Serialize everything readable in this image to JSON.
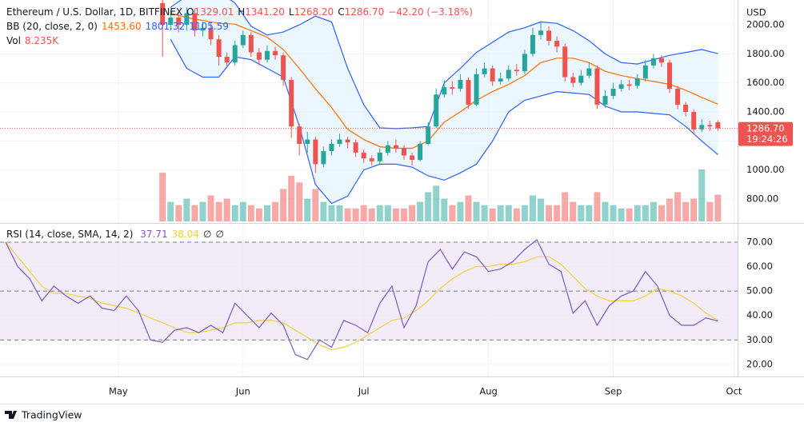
{
  "chart_data": [
    {
      "type": "candlestick",
      "title": "Ethereum / U.S. Dollar, 1D, BITFINEX",
      "ohlc_legend": [
        {
          "key": "O",
          "value": "1329.01"
        },
        {
          "key": "H",
          "value": "1341.20"
        },
        {
          "key": "L",
          "value": "1268.20"
        },
        {
          "key": "C",
          "value": "1286.70"
        }
      ],
      "change": "−42.20 (−3.18%)",
      "indicator_legends": [
        {
          "label": "BB (20, close, 2, 0)",
          "values": [
            "1453.60",
            "1801.32",
            "1105.59"
          ]
        },
        {
          "label": "Vol",
          "values": [
            "8.235K"
          ]
        }
      ],
      "currency": "USD",
      "price_label": "1286.70",
      "countdown": "19:24:26",
      "x": [
        132,
        134,
        136,
        138,
        140,
        142,
        144,
        146,
        148,
        150,
        152,
        154,
        156,
        158,
        160,
        162,
        164,
        166,
        168,
        170,
        172,
        174,
        176,
        178,
        180,
        182,
        184,
        186,
        188,
        190,
        192,
        194,
        196,
        198,
        200,
        202,
        204,
        206,
        208,
        210,
        212,
        214,
        216,
        218,
        220,
        222,
        224,
        226,
        228,
        230,
        232,
        234,
        236,
        238,
        240,
        242,
        244,
        246,
        248,
        250,
        252,
        254,
        256,
        258,
        260,
        262,
        264,
        266,
        268,
        270
      ],
      "open": [
        2150,
        2000,
        2050,
        2000,
        2080,
        1960,
        1980,
        1900,
        1780,
        1740,
        1860,
        1930,
        1810,
        1760,
        1820,
        1790,
        1620,
        1300,
        1180,
        1210,
        1040,
        1130,
        1180,
        1210,
        1190,
        1120,
        1080,
        1060,
        1120,
        1170,
        1150,
        1100,
        1070,
        1180,
        1300,
        1520,
        1570,
        1560,
        1620,
        1450,
        1660,
        1700,
        1610,
        1630,
        1690,
        1680,
        1800,
        1930,
        1960,
        1890,
        1850,
        1640,
        1600,
        1650,
        1700,
        1450,
        1510,
        1560,
        1590,
        1580,
        1630,
        1720,
        1770,
        1740,
        1560,
        1450,
        1400,
        1280,
        1310,
        1329.01
      ],
      "high": [
        2200,
        2100,
        2090,
        2120,
        2110,
        2020,
        2010,
        1930,
        1810,
        1890,
        1960,
        1950,
        1840,
        1860,
        1850,
        1810,
        1640,
        1320,
        1260,
        1230,
        1160,
        1210,
        1250,
        1230,
        1210,
        1140,
        1100,
        1150,
        1200,
        1210,
        1170,
        1120,
        1200,
        1330,
        1560,
        1620,
        1610,
        1660,
        1640,
        1700,
        1740,
        1720,
        1670,
        1720,
        1730,
        1830,
        1980,
        2020,
        1990,
        1920,
        1870,
        1670,
        1690,
        1740,
        1720,
        1550,
        1600,
        1620,
        1620,
        1660,
        1760,
        1800,
        1790,
        1760,
        1580,
        1470,
        1420,
        1350,
        1340,
        1341.2
      ],
      "low": [
        1780,
        1960,
        1950,
        1960,
        1920,
        1920,
        1860,
        1720,
        1700,
        1720,
        1840,
        1780,
        1720,
        1740,
        1760,
        1580,
        1220,
        1100,
        1120,
        980,
        1020,
        1100,
        1160,
        1150,
        1090,
        1050,
        1030,
        1040,
        1100,
        1120,
        1070,
        1030,
        1060,
        1170,
        1290,
        1500,
        1520,
        1540,
        1420,
        1440,
        1640,
        1580,
        1590,
        1610,
        1650,
        1660,
        1780,
        1900,
        1860,
        1810,
        1610,
        1570,
        1580,
        1630,
        1420,
        1430,
        1490,
        1540,
        1550,
        1560,
        1610,
        1700,
        1710,
        1530,
        1420,
        1370,
        1250,
        1260,
        1270,
        1268.2
      ],
      "close": [
        2000,
        2050,
        2000,
        2080,
        1960,
        1980,
        1900,
        1780,
        1740,
        1860,
        1930,
        1810,
        1760,
        1820,
        1790,
        1620,
        1300,
        1180,
        1210,
        1040,
        1130,
        1180,
        1210,
        1190,
        1120,
        1080,
        1060,
        1120,
        1170,
        1150,
        1100,
        1070,
        1180,
        1300,
        1520,
        1570,
        1560,
        1620,
        1450,
        1660,
        1700,
        1610,
        1630,
        1690,
        1680,
        1800,
        1930,
        1960,
        1890,
        1850,
        1640,
        1600,
        1650,
        1700,
        1450,
        1510,
        1560,
        1590,
        1580,
        1630,
        1720,
        1770,
        1740,
        1560,
        1450,
        1400,
        1280,
        1310,
        1300,
        1286.7
      ],
      "volume": [
        15,
        6,
        5,
        7,
        5,
        6,
        8,
        6,
        7,
        5,
        6,
        5,
        4,
        5,
        6,
        10,
        14,
        12,
        7,
        10,
        6,
        5,
        5,
        4,
        4,
        5,
        4,
        5,
        5,
        4,
        4,
        5,
        6,
        9,
        11,
        7,
        5,
        6,
        8,
        6,
        5,
        4,
        5,
        5,
        4,
        5,
        8,
        7,
        5,
        5,
        9,
        6,
        5,
        5,
        9,
        6,
        5,
        4,
        4,
        5,
        5,
        6,
        5,
        7,
        9,
        6,
        7,
        16,
        6,
        8.235
      ],
      "up_color": "#26a69a",
      "down_color": "#ef5350",
      "bollinger": {
        "x": [
          134,
          138,
          142,
          146,
          150,
          154,
          158,
          162,
          166,
          170,
          174,
          178,
          182,
          186,
          190,
          194,
          198,
          202,
          206,
          210,
          214,
          218,
          222,
          226,
          230,
          234,
          238,
          242,
          246,
          250,
          254,
          258,
          262,
          266,
          270
        ],
        "basis": {
          "color": "#ff6d00",
          "values": [
            2080,
            2050,
            2030,
            2010,
            2005,
            1960,
            1915,
            1830,
            1700,
            1560,
            1430,
            1280,
            1210,
            1160,
            1150,
            1150,
            1200,
            1330,
            1400,
            1480,
            1540,
            1590,
            1650,
            1740,
            1770,
            1770,
            1740,
            1680,
            1650,
            1630,
            1610,
            1590,
            1550,
            1500,
            1453.6
          ]
        },
        "upper": {
          "color": "#2962ff",
          "values": [
            2120,
            2200,
            2250,
            2230,
            2150,
            1990,
            1930,
            1950,
            2000,
            2060,
            2020,
            1700,
            1450,
            1290,
            1285,
            1290,
            1300,
            1600,
            1700,
            1810,
            1880,
            1950,
            1980,
            2020,
            2010,
            1960,
            1890,
            1800,
            1740,
            1730,
            1760,
            1790,
            1810,
            1830,
            1801.32
          ]
        },
        "lower": {
          "color": "#2962ff",
          "values": [
            1900,
            1700,
            1640,
            1640,
            1780,
            1760,
            1700,
            1640,
            1300,
            900,
            770,
            820,
            1000,
            1040,
            1040,
            1020,
            960,
            930,
            980,
            1040,
            1200,
            1400,
            1480,
            1510,
            1540,
            1530,
            1520,
            1440,
            1400,
            1400,
            1390,
            1380,
            1300,
            1200,
            1105.59
          ]
        },
        "fill": "#e3f2fd"
      },
      "xlim": [
        92.6,
        274.9
      ],
      "ylim": [
        646,
        2171
      ],
      "yticks": [
        {
          "value": 800,
          "label": "800.00"
        },
        {
          "value": 1000,
          "label": "1000.00"
        },
        {
          "value": 1200,
          "label": "1200.00"
        },
        {
          "value": 1400,
          "label": "1400.00"
        },
        {
          "value": 1600,
          "label": "1600.00"
        },
        {
          "value": 1800,
          "label": "1800.00"
        },
        {
          "value": 2000,
          "label": "2000.00"
        }
      ],
      "grid": true
    },
    {
      "type": "line",
      "title": "RSI (14, close, SMA, 14, 2)",
      "legend_values": [
        "37.71",
        "38.04",
        "∅",
        "∅"
      ],
      "x": [
        93,
        96,
        99,
        102,
        105,
        108,
        111,
        114,
        117,
        120,
        123,
        126,
        129,
        132,
        135,
        138,
        141,
        144,
        147,
        150,
        153,
        156,
        159,
        162,
        165,
        168,
        171,
        174,
        177,
        180,
        183,
        186,
        189,
        192,
        195,
        198,
        201,
        204,
        207,
        210,
        213,
        216,
        219,
        222,
        225,
        228,
        231,
        234,
        237,
        240,
        243,
        246,
        249,
        252,
        255,
        258,
        261,
        264,
        267,
        270
      ],
      "series": [
        {
          "color": "#7e57c2",
          "values": [
            70,
            60,
            55,
            46,
            52,
            48,
            45,
            48,
            43,
            42,
            48,
            42,
            30,
            29,
            34,
            35,
            33,
            36,
            33,
            45,
            40,
            35,
            41,
            36,
            24,
            22,
            30,
            27,
            38,
            36,
            33,
            45,
            52,
            35,
            44,
            62,
            67,
            59,
            66,
            64,
            58,
            59,
            62,
            67,
            71,
            61,
            58,
            41,
            46,
            36,
            44,
            48,
            50,
            58,
            52,
            40,
            36,
            36,
            39,
            37.71
          ]
        },
        {
          "color": "#f2d13c",
          "values": [
            70,
            64,
            58,
            52,
            49,
            49,
            48,
            47,
            45,
            44,
            43,
            41,
            39,
            37,
            35,
            33,
            33,
            34,
            35,
            37,
            37,
            38,
            38,
            37,
            34,
            31,
            28,
            26,
            27,
            29,
            32,
            35,
            38,
            39,
            42,
            46,
            51,
            55,
            58,
            60,
            60,
            61,
            61,
            62,
            64,
            64,
            61,
            56,
            51,
            48,
            46,
            46,
            46,
            48,
            51,
            50,
            48,
            45,
            41,
            38.04
          ]
        }
      ],
      "levels": [
        70,
        50,
        30
      ],
      "band_color": "#ede7f6",
      "xlim": [
        92.6,
        274.9
      ],
      "ylim": [
        15.4,
        77.5
      ],
      "yticks": [
        {
          "value": 20,
          "label": "20.00"
        },
        {
          "value": 30,
          "label": "30.00"
        },
        {
          "value": 40,
          "label": "40.00"
        },
        {
          "value": 50,
          "label": "50.00"
        },
        {
          "value": 60,
          "label": "60.00"
        },
        {
          "value": 70,
          "label": "70.00"
        }
      ],
      "xticks": [
        {
          "value": 121,
          "label": "May"
        },
        {
          "value": 152,
          "label": "Jun"
        },
        {
          "value": 182,
          "label": "Jul"
        },
        {
          "value": 213,
          "label": "Aug"
        },
        {
          "value": 244,
          "label": "Sep"
        },
        {
          "value": 274,
          "label": "Oct"
        }
      ],
      "grid": true
    }
  ],
  "footer": {
    "brand": "TradingView"
  }
}
